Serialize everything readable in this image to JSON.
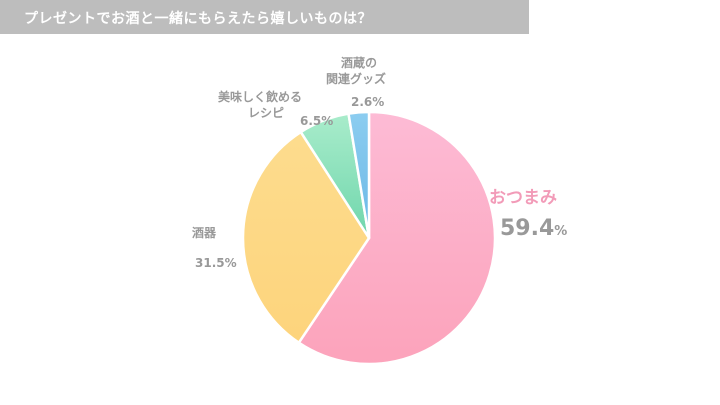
{
  "header": {
    "title": "プレゼントでお酒と一緒にもらえたら嬉しいものは？"
  },
  "labels": {
    "otsumami": {
      "name": "おつまみ",
      "value": "59.4",
      "unit": "%"
    },
    "shuki": {
      "name": "酒器",
      "pct": "31.5%"
    },
    "recipe": {
      "name_line1": "美味しく飲める",
      "name_line2": "レシピ",
      "pct": "6.5%"
    },
    "goods": {
      "name_line1": "酒蔵の",
      "name_line2": "関連グッズ",
      "pct": "2.6%"
    }
  },
  "colors": {
    "header_bg": "#bdbdbd",
    "otsumami": "#fcaac6",
    "shuki": "#fdd985",
    "recipe": "#8fe0bb",
    "goods": "#7fc4ec",
    "main_label": "#f29bb8",
    "label_gray": "#999999"
  },
  "chart_data": {
    "type": "pie",
    "title": "プレゼントでお酒と一緒にもらえたら嬉しいものは？",
    "categories": [
      "おつまみ",
      "酒器",
      "美味しく飲めるレシピ",
      "酒蔵の関連グッズ"
    ],
    "values": [
      59.4,
      31.5,
      6.5,
      2.6
    ],
    "unit": "%",
    "start_angle": "12 o'clock, clockwise",
    "colors": [
      "#fcaac6",
      "#fdd985",
      "#8fe0bb",
      "#7fc4ec"
    ],
    "legend": "none (direct labels)"
  }
}
